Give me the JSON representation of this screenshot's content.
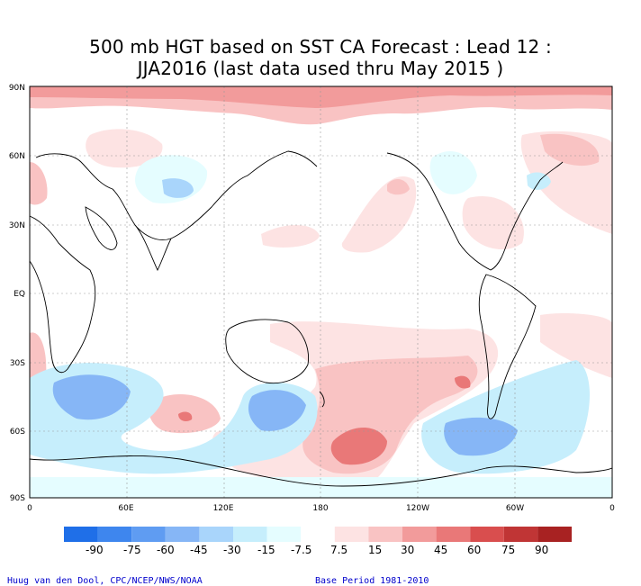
{
  "title_line1": "500 mb HGT based on SST CA Forecast : Lead 12 :",
  "title_line2": "JJA2016 (last data used thru May 2015 )",
  "lat_labels": [
    "90N",
    "60N",
    "30N",
    "EQ",
    "30S",
    "60S",
    "90S"
  ],
  "lon_labels": [
    "0",
    "60E",
    "120E",
    "180",
    "120W",
    "60W",
    "0"
  ],
  "colorbar": {
    "labels": [
      "-90",
      "-75",
      "-60",
      "-45",
      "-30",
      "-15",
      "-7.5",
      "7.5",
      "15",
      "30",
      "45",
      "60",
      "75",
      "90"
    ],
    "colors": [
      "#1f6fe8",
      "#3e86ee",
      "#5f9cf2",
      "#86b6f6",
      "#a9d5fb",
      "#c6eefc",
      "#e5fdff",
      "#ffffff",
      "#fde3e3",
      "#f9c3c3",
      "#f29b9b",
      "#e97878",
      "#d94e4e",
      "#c03535",
      "#a82222"
    ]
  },
  "footer_left": "Huug van den Dool, CPC/NCEP/NWS/NOAA",
  "footer_right": "Base Period 1981-2010"
}
